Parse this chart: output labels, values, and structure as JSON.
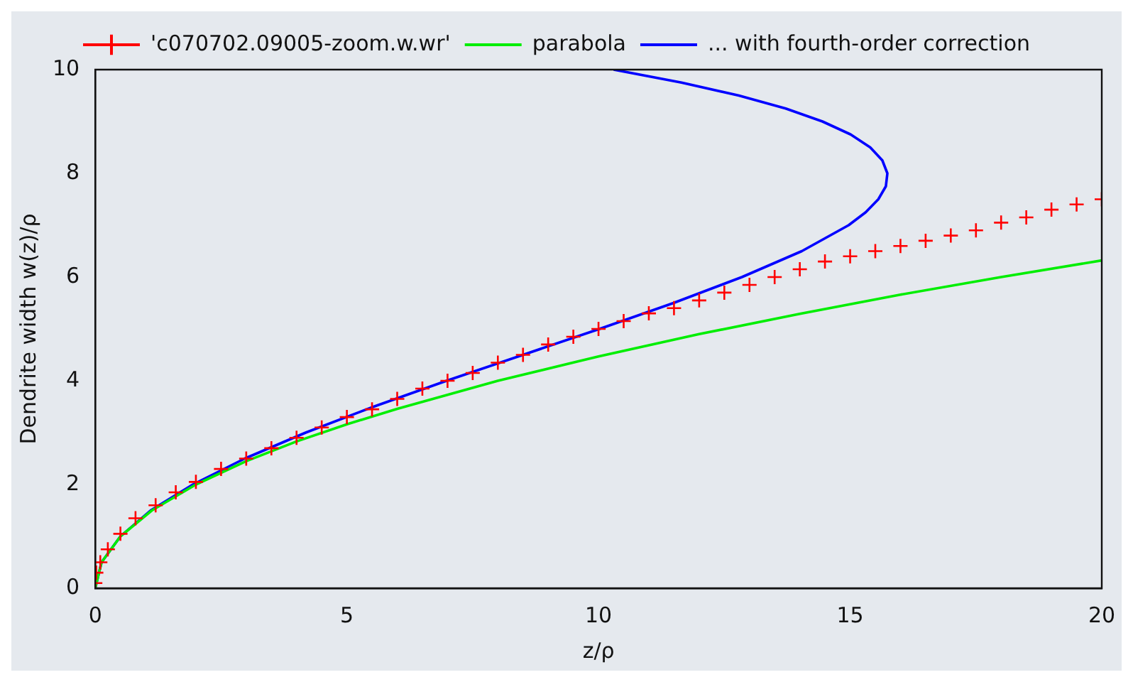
{
  "chart_data": {
    "type": "scatter",
    "xlabel": "z/ρ",
    "ylabel": "Dendrite width w(z)/ρ",
    "xlim": [
      0,
      20
    ],
    "ylim": [
      0,
      10
    ],
    "xticks": [
      0,
      5,
      10,
      15,
      20
    ],
    "yticks": [
      0,
      2,
      4,
      6,
      8,
      10
    ],
    "grid": false,
    "legend": "top",
    "series": [
      {
        "name": "'c070702.09005-zoom.w.wr'",
        "type": "scatter",
        "marker": "cross",
        "color": "#ff0000",
        "x": [
          0,
          0.02,
          0.1,
          0.25,
          0.5,
          0.8,
          1.2,
          1.6,
          2,
          2.5,
          3,
          3.5,
          4,
          4.5,
          5,
          5.5,
          6,
          6.5,
          7,
          7.5,
          8,
          8.5,
          9,
          9.5,
          10,
          10.5,
          11,
          11.5,
          12,
          12.5,
          13,
          13.5,
          14,
          14.5,
          15,
          15.5,
          16,
          16.5,
          17,
          17.5,
          18,
          18.5,
          19,
          19.5,
          20
        ],
        "values": [
          0.1,
          0.3,
          0.5,
          0.75,
          1.05,
          1.35,
          1.6,
          1.85,
          2.05,
          2.3,
          2.5,
          2.7,
          2.9,
          3.1,
          3.3,
          3.45,
          3.65,
          3.85,
          4.0,
          4.15,
          4.35,
          4.5,
          4.7,
          4.85,
          5.0,
          5.15,
          5.3,
          5.4,
          5.55,
          5.7,
          5.85,
          6.0,
          6.15,
          6.3,
          6.4,
          6.5,
          6.6,
          6.7,
          6.8,
          6.9,
          7.05,
          7.15,
          7.3,
          7.4,
          7.5
        ]
      },
      {
        "name": "parabola",
        "type": "line",
        "marker": "none",
        "line_style": "solid",
        "color": "#00ee00",
        "x": [
          0,
          0.125,
          0.5,
          1.125,
          2,
          3,
          4,
          5,
          6,
          8,
          10,
          12,
          14,
          16,
          18,
          20
        ],
        "values": [
          0,
          0.5,
          1,
          1.5,
          2,
          2.45,
          2.83,
          3.16,
          3.46,
          4,
          4.47,
          4.9,
          5.29,
          5.66,
          6,
          6.32
        ]
      },
      {
        "name": "... with fourth-order correction",
        "type": "line",
        "marker": "none",
        "line_style": "solid",
        "color": "#0000ff",
        "x": [
          0,
          0.125,
          0.5,
          1.1,
          1.94,
          2.97,
          4.18,
          5.53,
          6.98,
          8.5,
          10.02,
          11.49,
          12.85,
          14.04,
          14.97,
          15.31,
          15.56,
          15.71,
          15.74,
          15.64,
          15.4,
          15.01,
          14.45,
          13.72,
          12.79,
          11.65,
          10.3
        ],
        "values": [
          0,
          0.5,
          1,
          1.5,
          2,
          2.5,
          3,
          3.5,
          4,
          4.5,
          5,
          5.5,
          6,
          6.5,
          7,
          7.25,
          7.5,
          7.75,
          8,
          8.25,
          8.5,
          8.75,
          9,
          9.25,
          9.5,
          9.75,
          10
        ]
      }
    ]
  }
}
